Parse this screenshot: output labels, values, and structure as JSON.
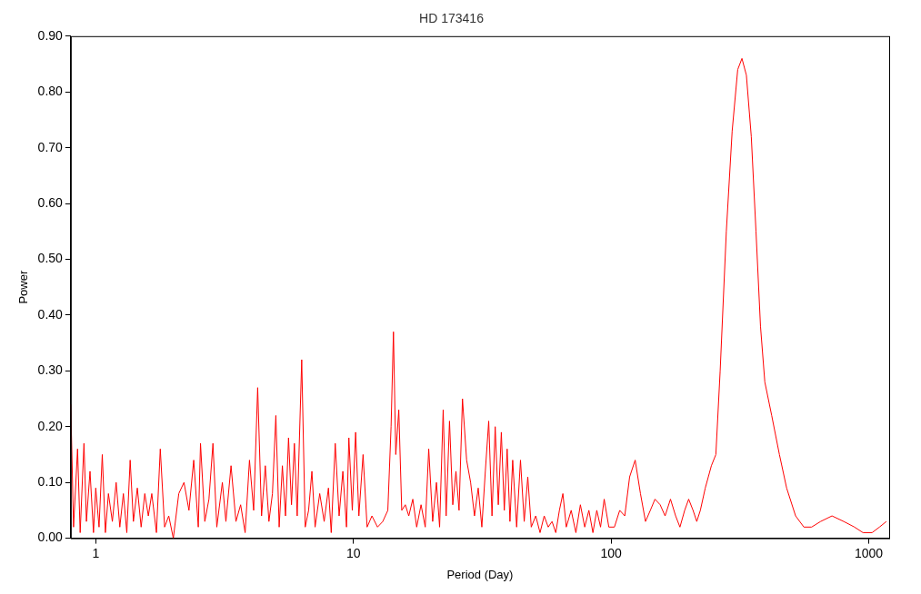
{
  "chart_data": {
    "type": "line",
    "title": "HD 173416",
    "x_label": "Period (Day)",
    "y_label": "Power",
    "log": "x",
    "grid": false,
    "color": "#ff0000",
    "xlim": [
      0.8,
      1200
    ],
    "xticks": [
      1,
      10,
      100,
      1000
    ],
    "ylim": [
      0,
      0.9
    ],
    "yticks": [
      {
        "value": 0,
        "label": "0.00"
      },
      {
        "value": 0.1,
        "label": "0.10"
      },
      {
        "value": 0.2,
        "label": "0.20"
      },
      {
        "value": 0.3,
        "label": "0.30"
      },
      {
        "value": 0.4,
        "label": "0.40"
      },
      {
        "value": 0.5,
        "label": "0.50"
      },
      {
        "value": 0.6,
        "label": "0.60"
      },
      {
        "value": 0.7,
        "label": "0.70"
      },
      {
        "value": 0.8,
        "label": "0.80"
      },
      {
        "value": 0.9,
        "label": "0.90"
      }
    ],
    "x": [
      0.8,
      0.82,
      0.85,
      0.87,
      0.9,
      0.92,
      0.95,
      0.98,
      1.0,
      1.03,
      1.06,
      1.09,
      1.12,
      1.16,
      1.2,
      1.24,
      1.28,
      1.32,
      1.36,
      1.4,
      1.45,
      1.5,
      1.55,
      1.6,
      1.65,
      1.72,
      1.78,
      1.85,
      1.92,
      2.0,
      2.1,
      2.2,
      2.3,
      2.4,
      2.5,
      2.55,
      2.65,
      2.75,
      2.85,
      2.95,
      3.1,
      3.2,
      3.35,
      3.5,
      3.65,
      3.8,
      3.95,
      4.1,
      4.25,
      4.4,
      4.55,
      4.7,
      4.85,
      5.0,
      5.15,
      5.3,
      5.45,
      5.6,
      5.75,
      5.9,
      6.05,
      6.3,
      6.5,
      6.7,
      6.9,
      7.1,
      7.4,
      7.7,
      8.0,
      8.2,
      8.5,
      8.8,
      9.1,
      9.4,
      9.6,
      9.9,
      10.2,
      10.5,
      10.9,
      11.3,
      11.8,
      12.4,
      13.0,
      13.6,
      14.0,
      14.3,
      14.6,
      15.0,
      15.4,
      15.9,
      16.4,
      17.0,
      17.6,
      18.3,
      19.0,
      19.6,
      20.3,
      21.0,
      21.6,
      22.3,
      22.9,
      23.6,
      24.3,
      25.0,
      25.7,
      26.5,
      27.5,
      28.5,
      29.5,
      30.5,
      31.5,
      32.5,
      33.5,
      34.5,
      35.5,
      36.5,
      37.5,
      38.5,
      39.5,
      40.5,
      41.5,
      43,
      44.5,
      46,
      47.5,
      49,
      51,
      53,
      55,
      57,
      59,
      61,
      63,
      65,
      67,
      70,
      73,
      76,
      79,
      82,
      85,
      88,
      91,
      94,
      98,
      103,
      108,
      113,
      118,
      124,
      130,
      136,
      142,
      148,
      155,
      162,
      170,
      178,
      185,
      193,
      200,
      208,
      215,
      222,
      232,
      245,
      255,
      265,
      280,
      295,
      310,
      322,
      335,
      350,
      365,
      380,
      395,
      420,
      450,
      480,
      520,
      560,
      600,
      650,
      720,
      800,
      880,
      950,
      1030,
      1100,
      1170
    ],
    "values": [
      0.24,
      0.02,
      0.16,
      0.01,
      0.17,
      0.03,
      0.12,
      0.01,
      0.09,
      0.02,
      0.15,
      0.01,
      0.08,
      0.03,
      0.1,
      0.02,
      0.08,
      0.01,
      0.14,
      0.03,
      0.09,
      0.02,
      0.08,
      0.04,
      0.08,
      0.01,
      0.16,
      0.02,
      0.04,
      0.0,
      0.08,
      0.1,
      0.05,
      0.14,
      0.02,
      0.17,
      0.03,
      0.07,
      0.17,
      0.02,
      0.1,
      0.03,
      0.13,
      0.03,
      0.06,
      0.01,
      0.14,
      0.05,
      0.27,
      0.04,
      0.13,
      0.03,
      0.08,
      0.22,
      0.02,
      0.13,
      0.04,
      0.18,
      0.06,
      0.17,
      0.04,
      0.32,
      0.02,
      0.05,
      0.12,
      0.02,
      0.08,
      0.03,
      0.09,
      0.01,
      0.17,
      0.04,
      0.12,
      0.02,
      0.18,
      0.05,
      0.19,
      0.04,
      0.15,
      0.02,
      0.04,
      0.02,
      0.03,
      0.05,
      0.2,
      0.37,
      0.15,
      0.23,
      0.05,
      0.06,
      0.04,
      0.07,
      0.02,
      0.06,
      0.02,
      0.16,
      0.03,
      0.1,
      0.02,
      0.23,
      0.04,
      0.21,
      0.06,
      0.12,
      0.05,
      0.25,
      0.14,
      0.1,
      0.04,
      0.09,
      0.02,
      0.12,
      0.21,
      0.04,
      0.2,
      0.06,
      0.19,
      0.05,
      0.16,
      0.03,
      0.14,
      0.02,
      0.14,
      0.03,
      0.11,
      0.02,
      0.04,
      0.01,
      0.04,
      0.02,
      0.03,
      0.01,
      0.05,
      0.08,
      0.02,
      0.05,
      0.01,
      0.06,
      0.02,
      0.05,
      0.01,
      0.05,
      0.02,
      0.07,
      0.02,
      0.02,
      0.05,
      0.04,
      0.11,
      0.14,
      0.08,
      0.03,
      0.05,
      0.07,
      0.06,
      0.04,
      0.07,
      0.04,
      0.02,
      0.05,
      0.07,
      0.05,
      0.03,
      0.05,
      0.09,
      0.13,
      0.15,
      0.3,
      0.55,
      0.73,
      0.84,
      0.86,
      0.83,
      0.72,
      0.55,
      0.38,
      0.28,
      0.22,
      0.15,
      0.09,
      0.04,
      0.02,
      0.02,
      0.03,
      0.04,
      0.03,
      0.02,
      0.01,
      0.01,
      0.02,
      0.03
    ]
  }
}
